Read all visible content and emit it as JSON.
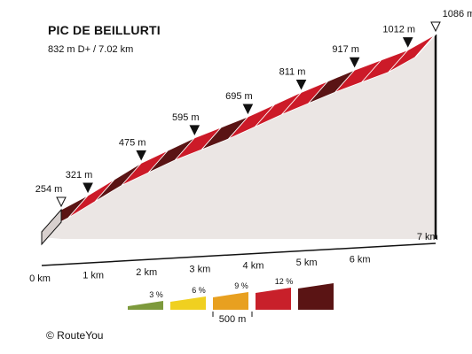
{
  "header": {
    "title": "PIC DE BEILLURTI",
    "subtitle": "832 m D+ / 7.02 km"
  },
  "chart_data": {
    "type": "area",
    "title": "PIC DE BEILLURTI",
    "subtitle": "832 m D+ / 7.02 km",
    "x_unit": "km",
    "y_unit": "m",
    "points": [
      {
        "km": 0.0,
        "elevation": 254,
        "label": "254 m",
        "marker": "start"
      },
      {
        "km": 0.5,
        "elevation": 321,
        "label": "321 m",
        "marker": "point"
      },
      {
        "km": 1.5,
        "elevation": 475,
        "label": "475 m",
        "marker": "point"
      },
      {
        "km": 2.5,
        "elevation": 595,
        "label": "595 m",
        "marker": "point"
      },
      {
        "km": 3.5,
        "elevation": 695,
        "label": "695 m",
        "marker": "point"
      },
      {
        "km": 4.5,
        "elevation": 811,
        "label": "811 m",
        "marker": "point"
      },
      {
        "km": 5.5,
        "elevation": 917,
        "label": "917 m",
        "marker": "point"
      },
      {
        "km": 6.5,
        "elevation": 1012,
        "label": "1012 m",
        "marker": "point"
      },
      {
        "km": 7.02,
        "elevation": 1086,
        "label": "1086 m",
        "marker": "end"
      }
    ],
    "segment_gradient_class": [
      5,
      4,
      5,
      4,
      5,
      4,
      5,
      4,
      4,
      4,
      5,
      4,
      4,
      4,
      5
    ],
    "x_ticks": [
      {
        "km": 0,
        "label": "0 km"
      },
      {
        "km": 1,
        "label": "1 km"
      },
      {
        "km": 2,
        "label": "2 km"
      },
      {
        "km": 3,
        "label": "3 km"
      },
      {
        "km": 4,
        "label": "4 km"
      },
      {
        "km": 5,
        "label": "5 km"
      },
      {
        "km": 6,
        "label": "6 km"
      },
      {
        "km": 7,
        "label": "7 km"
      }
    ]
  },
  "legend": {
    "gradients": [
      {
        "label": "3 %",
        "color": "#7d9a3c"
      },
      {
        "label": "6 %",
        "color": "#f0d020"
      },
      {
        "label": "9 %",
        "color": "#e8a020"
      },
      {
        "label": "12 %",
        "color": "#c8202a"
      },
      {
        "label": "",
        "color": "#5a1414"
      }
    ],
    "scale_label": "500 m"
  },
  "colors": {
    "dark": "#5a1414",
    "red": "#cc1a28",
    "wall": "#ebe6e4",
    "separator": "#ffffff",
    "axis": "#111111"
  },
  "footer": {
    "credit": "© RouteYou"
  }
}
